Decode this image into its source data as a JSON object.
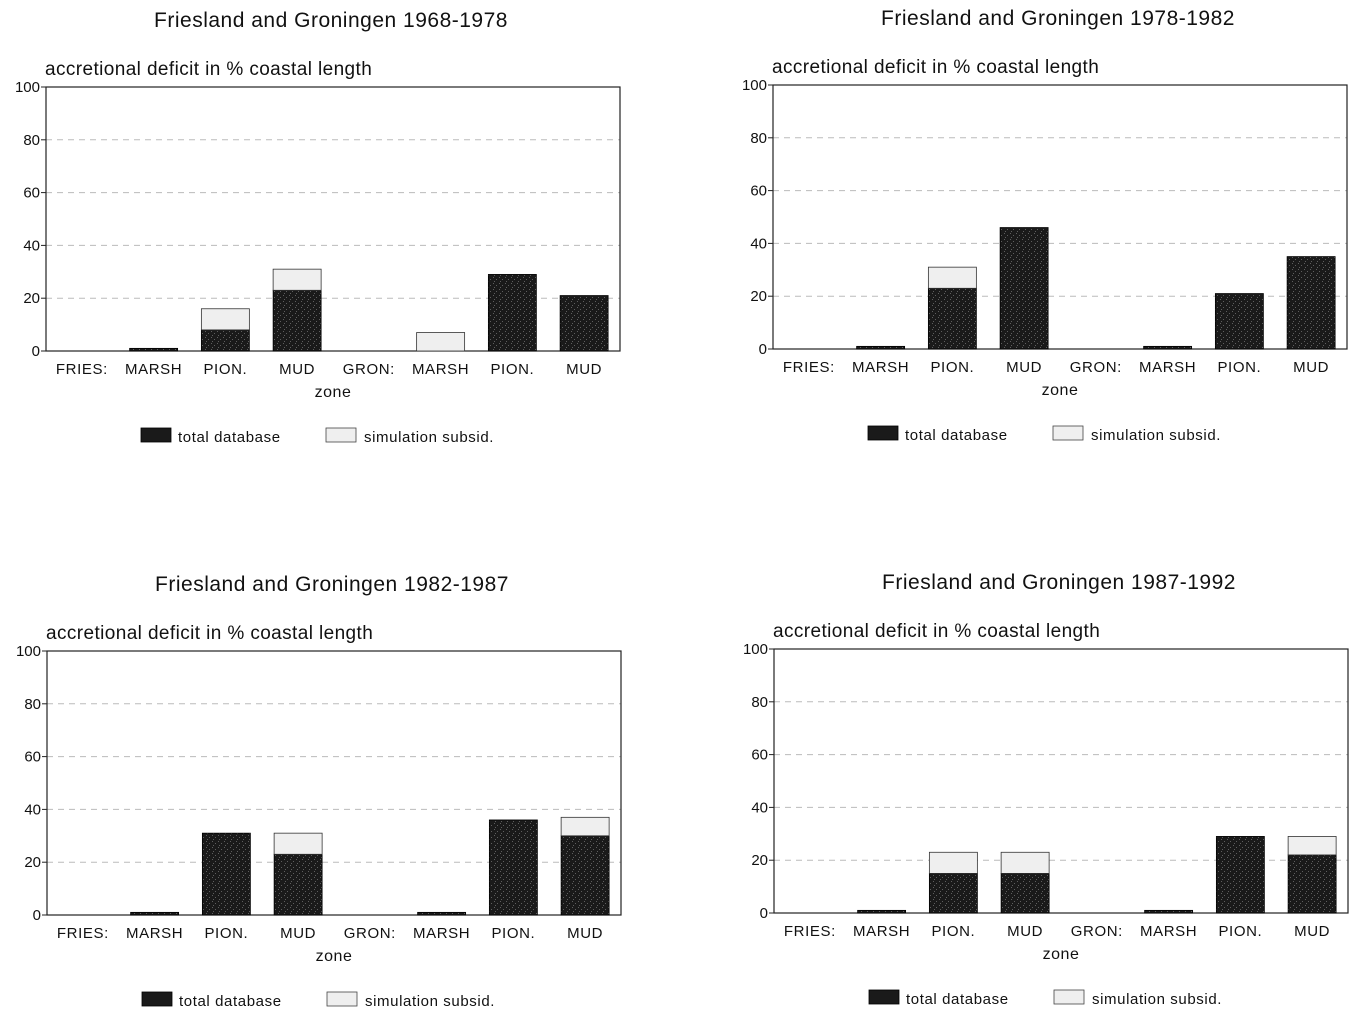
{
  "chart_data": [
    {
      "type": "bar",
      "stacked": true,
      "title": "Friesland and Groningen 1968-1978",
      "ylabel": "accretional deficit in % coastal length",
      "xlabel": "zone",
      "ylim": [
        0,
        100
      ],
      "yticks": [
        "0",
        "20",
        "40",
        "60",
        "80",
        "100"
      ],
      "grid": true,
      "categories": [
        "FRIES:",
        "MARSH",
        "PION.",
        "MUD",
        "GRON:",
        "MARSH",
        "PION.",
        "MUD"
      ],
      "series": [
        {
          "name": "total database",
          "values": [
            0,
            1,
            8,
            23,
            0,
            0,
            29,
            21
          ]
        },
        {
          "name": "simulation subsid.",
          "values": [
            0,
            0,
            8,
            8,
            0,
            7,
            0,
            0
          ]
        }
      ]
    },
    {
      "type": "bar",
      "stacked": true,
      "title": "Friesland and Groningen 1978-1982",
      "ylabel": "accretional deficit in % coastal length",
      "xlabel": "zone",
      "ylim": [
        0,
        100
      ],
      "yticks": [
        "0",
        "20",
        "40",
        "60",
        "80",
        "100"
      ],
      "grid": true,
      "categories": [
        "FRIES:",
        "MARSH",
        "PION.",
        "MUD",
        "GRON:",
        "MARSH",
        "PION.",
        "MUD"
      ],
      "series": [
        {
          "name": "total database",
          "values": [
            0,
            1,
            23,
            46,
            0,
            1,
            21,
            35
          ]
        },
        {
          "name": "simulation subsid.",
          "values": [
            0,
            0,
            8,
            0,
            0,
            0,
            0,
            0
          ]
        }
      ]
    },
    {
      "type": "bar",
      "stacked": true,
      "title": "Friesland and Groningen 1982-1987",
      "ylabel": "accretional deficit in % coastal length",
      "xlabel": "zone",
      "ylim": [
        0,
        100
      ],
      "yticks": [
        "0",
        "20",
        "40",
        "60",
        "80",
        "100"
      ],
      "grid": true,
      "categories": [
        "FRIES:",
        "MARSH",
        "PION.",
        "MUD",
        "GRON:",
        "MARSH",
        "PION.",
        "MUD"
      ],
      "series": [
        {
          "name": "total database",
          "values": [
            0,
            1,
            31,
            23,
            0,
            1,
            36,
            30
          ]
        },
        {
          "name": "simulation subsid.",
          "values": [
            0,
            0,
            0,
            8,
            0,
            0,
            0,
            7
          ]
        }
      ]
    },
    {
      "type": "bar",
      "stacked": true,
      "title": "Friesland and Groningen 1987-1992",
      "ylabel": "accretional deficit in % coastal length",
      "xlabel": "zone",
      "ylim": [
        0,
        100
      ],
      "yticks": [
        "0",
        "20",
        "40",
        "60",
        "80",
        "100"
      ],
      "grid": true,
      "categories": [
        "FRIES:",
        "MARSH",
        "PION.",
        "MUD",
        "GRON:",
        "MARSH",
        "PION.",
        "MUD"
      ],
      "series": [
        {
          "name": "total database",
          "values": [
            0,
            1,
            15,
            15,
            0,
            1,
            29,
            22
          ]
        },
        {
          "name": "simulation subsid.",
          "values": [
            0,
            0,
            8,
            8,
            0,
            0,
            0,
            7
          ]
        }
      ]
    }
  ],
  "colors": {
    "total_database": "#1a1a1a",
    "total_database_speckle": "#5e5e5e",
    "simulation_subsid": "#efefef",
    "axis": "#222222",
    "grid": "#bbbbbb"
  }
}
